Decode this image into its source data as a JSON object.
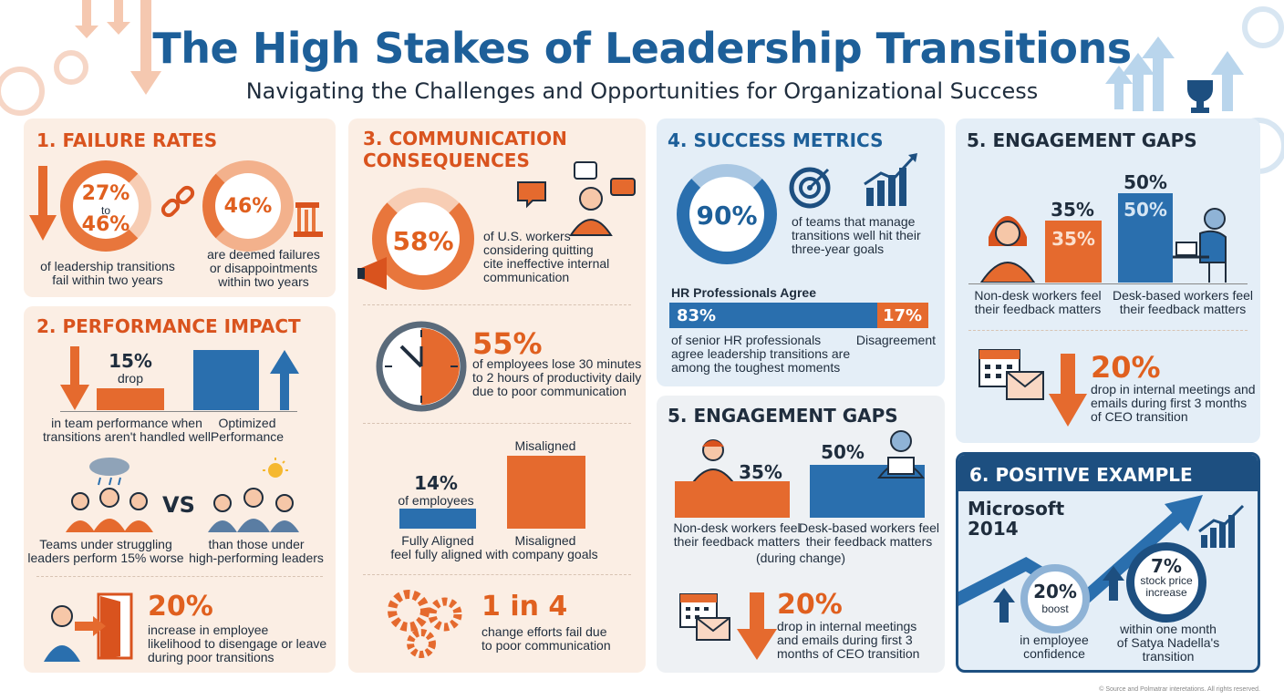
{
  "header": {
    "title": "The High Stakes of Leadership Transitions",
    "subtitle": "Navigating the Challenges and Opportunities for Organizational Success"
  },
  "failure": {
    "heading": "1. FAILURE RATES",
    "ring1_a": "27%",
    "ring1_b": "to",
    "ring1_c": "46%",
    "ring1_caption": "of leadership transitions\nfail within two years",
    "ring2_value": "46%",
    "ring2_caption": "are deemed failures\nor disappointments\nwithin two years"
  },
  "performance": {
    "heading": "2. PERFORMANCE IMPACT",
    "drop_value": "15%",
    "drop_word": "drop",
    "drop_caption": "in team performance when\ntransitions aren't handled well",
    "optimized_caption": "Optimized\nPerformance",
    "vs": "VS",
    "struggling_caption": "Teams under struggling\nleaders perform 15% worse",
    "high_caption": "than those under\nhigh-performing leaders",
    "disengage_value": "20%",
    "disengage_caption": "increase in employee\nlikelihood to disengage or leave\nduring poor transitions"
  },
  "communication": {
    "heading": "3. COMMUNICATION\nCONSEQUENCES",
    "ring_value": "58%",
    "ring_caption": "of U.S. workers\nconsidering quitting\ncite ineffective internal\ncommunication",
    "clock_value": "55%",
    "clock_caption": "of employees lose 30 minutes\nto 2 hours of productivity daily\ndue to poor communication",
    "aligned_value": "14%",
    "aligned_sub": "of employees",
    "misaligned_top": "Misaligned",
    "aligned_label": "Fully Aligned",
    "misaligned_label": "Misaligned",
    "aligned_caption": "feel fully aligned with company goals",
    "change_value": "1 in 4",
    "change_caption": "change efforts fail due\nto poor communication"
  },
  "success": {
    "heading": "4. SUCCESS METRICS",
    "ring_value": "90%",
    "ring_caption": "of teams that manage\ntransitions well hit their\nthree-year goals",
    "hr_title": "HR Professionals Agree",
    "agree_value": "83%",
    "disagree_value": "17%",
    "agree_caption": "of senior HR professionals\nagree leadership transitions are\namong the toughest moments",
    "disagree_caption": "Disagreement"
  },
  "engagement_mid": {
    "heading": "5. ENGAGEMENT GAPS",
    "nondesk_value": "35%",
    "desk_value": "50%",
    "nondesk_caption": "Non-desk workers feel\ntheir feedback matters",
    "desk_caption": "Desk-based workers feel\ntheir feedback matters",
    "during": "(during change)",
    "drop_value": "20%",
    "drop_caption": "drop in internal meetings\nand emails during first 3\nmonths of CEO transition"
  },
  "engagement_right": {
    "heading": "5. ENGAGEMENT GAPS",
    "nondesk_value": "35%",
    "nondesk_inner": "35%",
    "desk_value": "50%",
    "desk_inner": "50%",
    "nondesk_caption": "Non-desk workers feel\ntheir feedback matters",
    "desk_caption": "Desk-based workers feel\ntheir feedback matters",
    "drop_value": "20%",
    "drop_caption": "drop in internal meetings and\nemails during first 3 months\nof CEO transition"
  },
  "positive": {
    "heading": "6. POSITIVE EXAMPLE",
    "company": "Microsoft\n2014",
    "boost_value": "20%",
    "boost_word": "boost",
    "boost_caption": "in employee\nconfidence",
    "stock_value": "7%",
    "stock_word": "stock price\nincrease",
    "stock_caption": "within one month\nof Satya Nadella's\ntransition"
  },
  "footer": "© Source and Polmatrar interetations. All rights reserved.",
  "colors": {
    "orange": "#e0601f",
    "blue": "#1d5f99",
    "warm_bg": "#fbeee4",
    "cool_bg": "#e4eef7",
    "navy": "#1d4f80"
  },
  "icons": [
    "gear-icon",
    "down-arrow-icon",
    "up-arrow-icon",
    "trophy-icon",
    "broken-link-icon",
    "crumbling-column-icon",
    "team-icon",
    "cloud-icon",
    "sun-icon",
    "door-exit-icon",
    "megaphone-icon",
    "speech-bubble-icon",
    "angry-person-icon",
    "clock-icon",
    "gears-icon",
    "target-icon",
    "growth-chart-icon",
    "person-icon",
    "laptop-worker-icon",
    "calendar-icon",
    "envelope-icon"
  ]
}
